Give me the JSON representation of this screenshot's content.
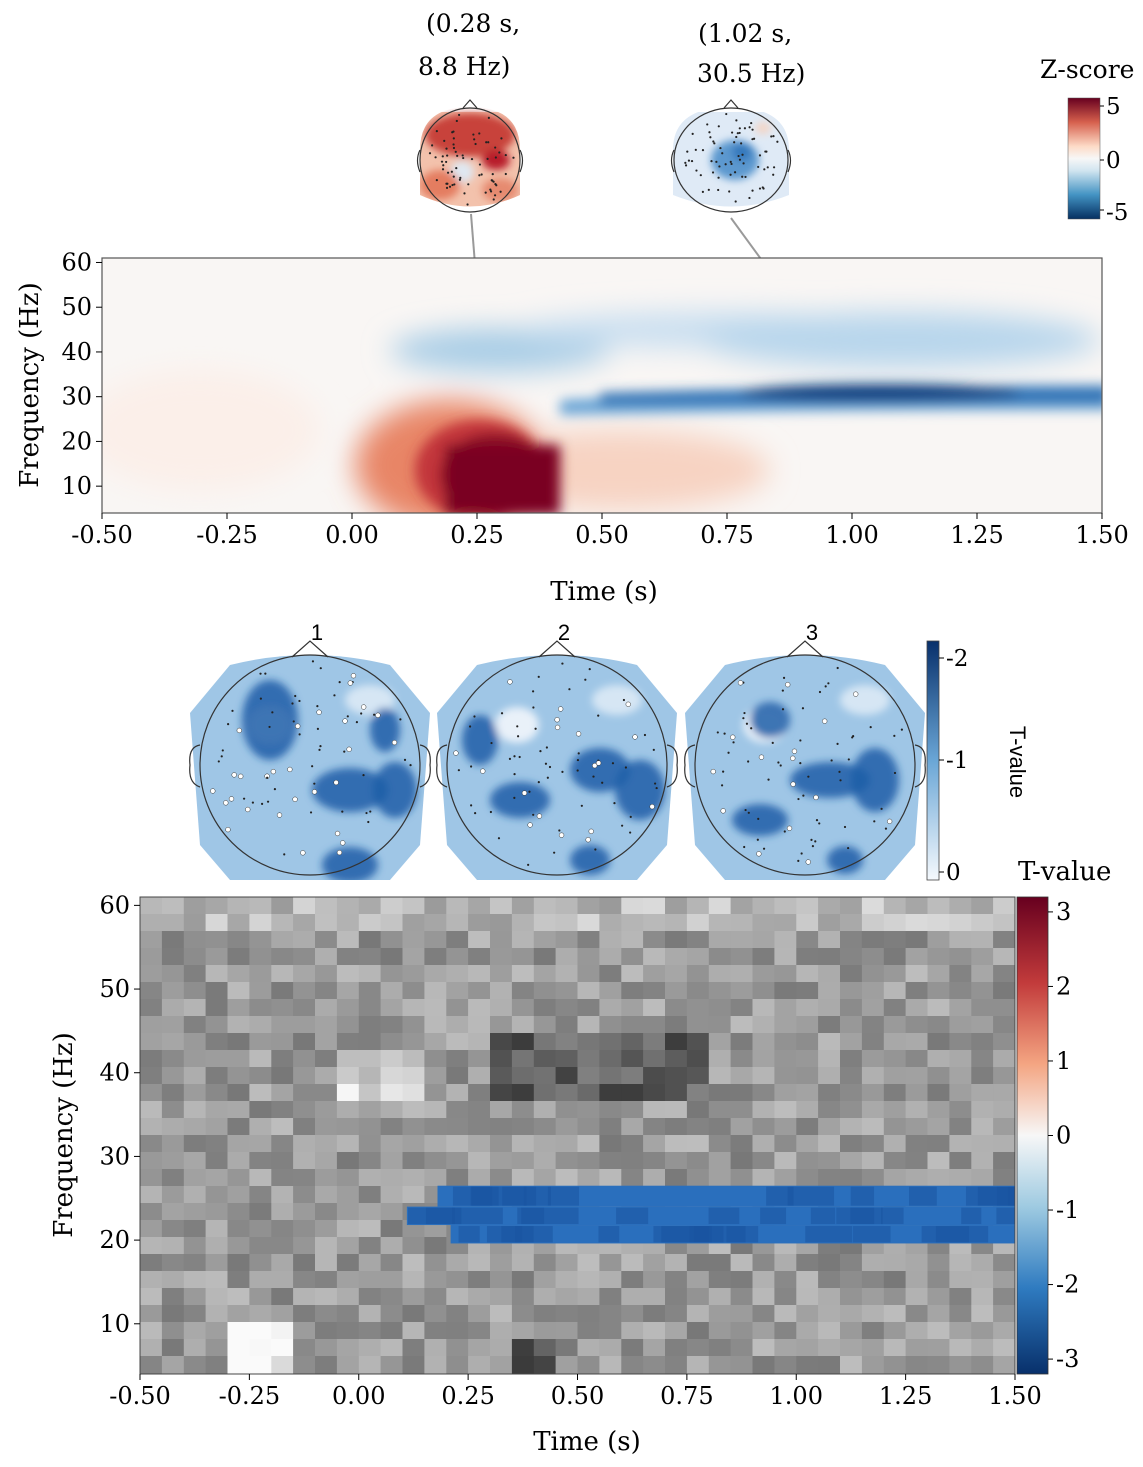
{
  "chart_data": [
    {
      "type": "heatmap",
      "title": "",
      "xlabel": "Time (s)",
      "ylabel": "Frequency (Hz)",
      "xlim": [
        -0.5,
        1.5
      ],
      "ylim": [
        4,
        61
      ],
      "x_ticks": [
        -0.5,
        -0.25,
        0.0,
        0.25,
        0.5,
        0.75,
        1.0,
        1.25,
        1.5
      ],
      "x_tick_labels": [
        "-0.50",
        "-0.25",
        "0.00",
        "0.25",
        "0.50",
        "0.75",
        "1.00",
        "1.25",
        "1.50"
      ],
      "y_ticks": [
        10,
        20,
        30,
        40,
        50,
        60
      ],
      "y_tick_labels": [
        "10",
        "20",
        "30",
        "40",
        "50",
        "60"
      ],
      "colorbar": {
        "label": "Z-score",
        "range": [
          -5,
          5
        ],
        "ticks": [
          5,
          0,
          -5
        ],
        "tick_labels": [
          "5",
          "0",
          "-5"
        ],
        "colors": [
          "#053061",
          "#2166ac",
          "#4393c3",
          "#92c5de",
          "#d1e5f0",
          "#f7f7f7",
          "#fddbc7",
          "#f4a582",
          "#d6604d",
          "#b2182b",
          "#67001f"
        ]
      },
      "blobs": [
        {
          "effect": "positive",
          "time_center": 0.3,
          "freq_center": 9,
          "peak_z": 7
        },
        {
          "effect": "negative",
          "time_center": 1.1,
          "freq_center": 30,
          "peak_z": -5
        },
        {
          "effect": "negative",
          "time_center": 0.42,
          "freq_center": 40,
          "peak_z": -2
        }
      ],
      "annotations": [
        {
          "time": 0.28,
          "freq": 8.8,
          "label_line1": "(0.28 s,",
          "label_line2": "8.8 Hz)",
          "polarity": "positive"
        },
        {
          "time": 1.02,
          "freq": 30.5,
          "label_line1": "(1.02 s,",
          "label_line2": "30.5 Hz)",
          "polarity": "negative"
        }
      ]
    },
    {
      "type": "heatmap",
      "title": "",
      "xlabel": "Time (s)",
      "ylabel": "Frequency (Hz)",
      "xlim": [
        -0.5,
        1.5
      ],
      "ylim": [
        4,
        61
      ],
      "x_ticks": [
        -0.5,
        -0.25,
        0.0,
        0.25,
        0.5,
        0.75,
        1.0,
        1.25,
        1.5
      ],
      "x_tick_labels": [
        "-0.50",
        "-0.25",
        "0.00",
        "0.25",
        "0.50",
        "0.75",
        "1.00",
        "1.25",
        "1.50"
      ],
      "y_ticks": [
        10,
        20,
        30,
        40,
        50,
        60
      ],
      "y_tick_labels": [
        "10",
        "20",
        "30",
        "40",
        "50",
        "60"
      ],
      "colorbar": {
        "label": "T-value",
        "range": [
          -3.2,
          3.2
        ],
        "ticks": [
          3,
          2,
          1,
          0,
          -1,
          -2,
          -3
        ],
        "tick_labels": [
          "3",
          "2",
          "1",
          "0",
          "-1",
          "-2",
          "-3"
        ],
        "colors": [
          "#08306b",
          "#1f5fa8",
          "#4292c6",
          "#9ecae1",
          "#f7f7f7",
          "#f4a582",
          "#d6604d",
          "#b2182b",
          "#67001f"
        ]
      },
      "significant_cluster": {
        "effect": "negative",
        "rows": [
          {
            "freq_low": 24,
            "freq_high": 26.5,
            "t_start": 0.18,
            "t_end": 1.5
          },
          {
            "freq_low": 21.8,
            "freq_high": 24,
            "t_start": 0.11,
            "t_end": 1.5
          },
          {
            "freq_low": 19.6,
            "freq_high": 21.8,
            "t_start": 0.21,
            "t_end": 1.5
          }
        ]
      },
      "topomaps": {
        "labels": [
          "1",
          "2",
          "3"
        ],
        "colorbar": {
          "label": "T-value",
          "ticks": [
            "-2",
            "-1",
            "0"
          ],
          "range": [
            -2.2,
            0
          ]
        }
      }
    }
  ]
}
